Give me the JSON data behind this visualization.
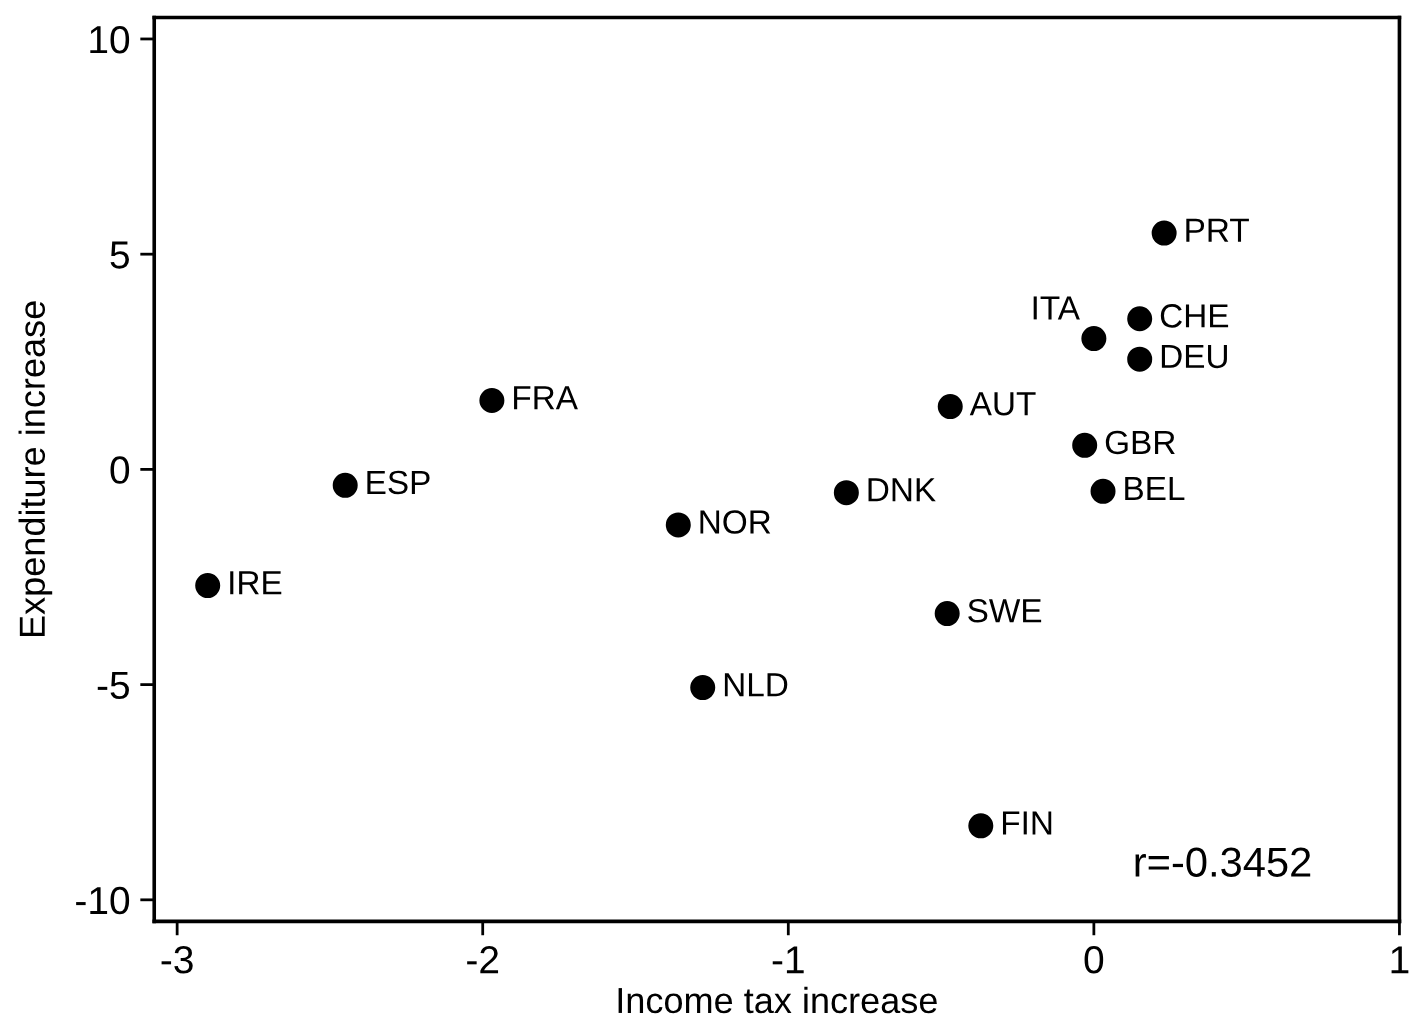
{
  "chart_data": {
    "type": "scatter",
    "xlabel": "Income tax increase",
    "ylabel": "Expenditure increase",
    "xlim": [
      -3.075,
      1.0
    ],
    "ylim": [
      -10.5,
      10.5
    ],
    "xticks": [
      -3,
      -2,
      -1,
      0,
      1
    ],
    "yticks": [
      -10,
      -5,
      0,
      5,
      10
    ],
    "grid": false,
    "marker": "circle",
    "series": [
      {
        "color": "#000000",
        "x": [
          -2.9,
          -2.45,
          -1.97,
          -1.36,
          -1.28,
          -0.81,
          -0.47,
          -0.48,
          -0.37,
          0.0,
          0.15,
          0.15,
          0.23,
          -0.03,
          0.03
        ],
        "values": [
          -2.7,
          -0.37,
          1.6,
          -1.29,
          -5.07,
          -0.54,
          1.46,
          -3.35,
          -8.28,
          3.04,
          3.5,
          2.56,
          5.49,
          0.56,
          -0.51
        ]
      }
    ],
    "annotations": [
      {
        "text": "IRE",
        "x": -2.9,
        "y": -2.7
      },
      {
        "text": "ESP",
        "x": -2.45,
        "y": -0.37
      },
      {
        "text": "FRA",
        "x": -1.97,
        "y": 1.6
      },
      {
        "text": "NOR",
        "x": -1.36,
        "y": -1.29
      },
      {
        "text": "NLD",
        "x": -1.28,
        "y": -5.07
      },
      {
        "text": "DNK",
        "x": -0.81,
        "y": -0.54
      },
      {
        "text": "AUT",
        "x": -0.47,
        "y": 1.46
      },
      {
        "text": "SWE",
        "x": -0.48,
        "y": -3.35
      },
      {
        "text": "FIN",
        "x": -0.37,
        "y": -8.28
      },
      {
        "text": "ITA",
        "x": 0.0,
        "y": 3.04
      },
      {
        "text": "CHE",
        "x": 0.15,
        "y": 3.5
      },
      {
        "text": "DEU",
        "x": 0.15,
        "y": 2.56
      },
      {
        "text": "PRT",
        "x": 0.23,
        "y": 5.49
      },
      {
        "text": "GBR",
        "x": -0.03,
        "y": 0.56
      },
      {
        "text": "BEL",
        "x": 0.03,
        "y": -0.51
      },
      "r=-0.3452"
    ]
  }
}
